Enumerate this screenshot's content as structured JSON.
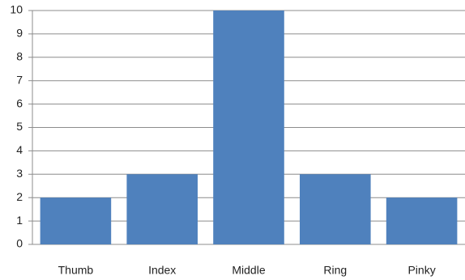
{
  "chart_data": {
    "type": "bar",
    "categories": [
      "Thumb",
      "Index",
      "Middle",
      "Ring",
      "Pinky"
    ],
    "values": [
      2,
      3,
      10,
      3,
      2
    ],
    "color": "#4f81bd",
    "ylim": [
      0,
      10
    ],
    "yticks": [
      0,
      1,
      2,
      3,
      4,
      5,
      6,
      7,
      8,
      9,
      10
    ],
    "grid": true
  }
}
